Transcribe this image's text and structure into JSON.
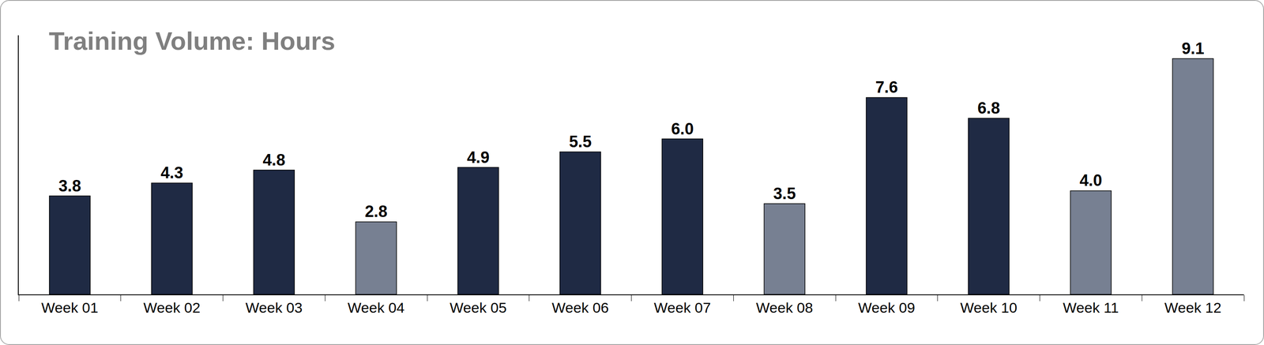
{
  "chart_data": {
    "type": "bar",
    "title": "Training Volume: Hours",
    "categories": [
      "Week 01",
      "Week 02",
      "Week 03",
      "Week 04",
      "Week 05",
      "Week 06",
      "Week 07",
      "Week 08",
      "Week 09",
      "Week 10",
      "Week 11",
      "Week 12"
    ],
    "values": [
      3.8,
      4.3,
      4.8,
      2.8,
      4.9,
      5.5,
      6.0,
      3.5,
      7.6,
      6.8,
      4.0,
      9.1
    ],
    "value_labels": [
      "3.8",
      "4.3",
      "4.8",
      "2.8",
      "4.9",
      "5.5",
      "6.0",
      "3.5",
      "7.6",
      "6.8",
      "4.0",
      "9.1"
    ],
    "colors": [
      "#1f2a44",
      "#1f2a44",
      "#1f2a44",
      "#778092",
      "#1f2a44",
      "#1f2a44",
      "#1f2a44",
      "#778092",
      "#1f2a44",
      "#1f2a44",
      "#778092",
      "#778092"
    ],
    "ylim": [
      0,
      10
    ],
    "yticks": [],
    "grid": false,
    "data_labels": true,
    "tick_labels": "x"
  }
}
